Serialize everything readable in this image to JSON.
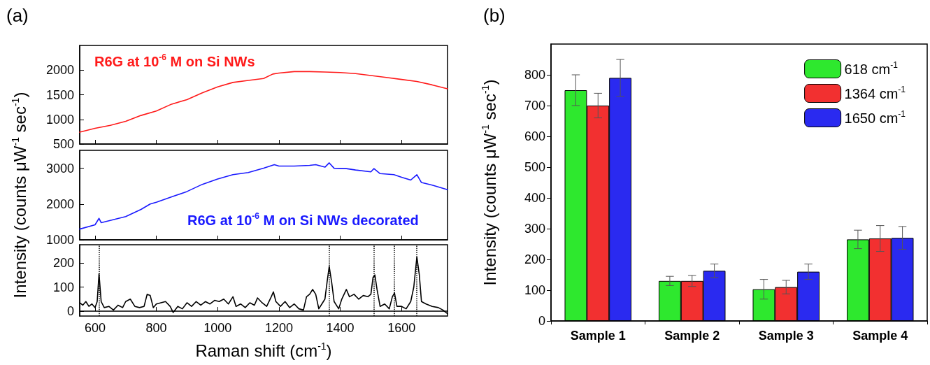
{
  "chart_data": [
    {
      "type": "line",
      "title": "(a)",
      "xlim": [
        550,
        1750
      ],
      "xticks": [
        600,
        800,
        1000,
        1200,
        1400,
        1600
      ],
      "ylim": [
        500,
        2500
      ],
      "yticks": [
        500,
        1000,
        1500,
        2000
      ],
      "tick_labels": "y",
      "series": [
        {
          "name": "R6G at 10$^{-6}$ M on Si NWs",
          "color": "#ff1a1a",
          "x": [
            550,
            600,
            650,
            700,
            750,
            800,
            850,
            900,
            950,
            1000,
            1050,
            1100,
            1150,
            1180,
            1200,
            1250,
            1300,
            1350,
            1400,
            1450,
            1500,
            1550,
            1600,
            1650,
            1700,
            1750
          ],
          "values": [
            740,
            820,
            880,
            960,
            1080,
            1170,
            1310,
            1400,
            1540,
            1660,
            1750,
            1790,
            1830,
            1920,
            1940,
            1970,
            1970,
            1960,
            1950,
            1930,
            1890,
            1850,
            1810,
            1770,
            1700,
            1620
          ]
        }
      ]
    },
    {
      "type": "line",
      "ylabel": "Intensity (counts μW$^{-1}$ sec$^{-1}$)",
      "xlim": [
        550,
        1750
      ],
      "xticks": [
        600,
        800,
        1000,
        1200,
        1400,
        1600
      ],
      "ylim": [
        1000,
        3500
      ],
      "yticks": [
        1000,
        2000,
        3000
      ],
      "tick_labels": "y",
      "series": [
        {
          "name": "R6G at 10$^{-6}$ M on Si NWs decorated",
          "color": "#1a1aff",
          "x": [
            550,
            600,
            613,
            620,
            700,
            750,
            780,
            800,
            850,
            900,
            950,
            1000,
            1050,
            1100,
            1150,
            1185,
            1200,
            1250,
            1300,
            1320,
            1350,
            1364,
            1380,
            1420,
            1450,
            1500,
            1510,
            1530,
            1575,
            1600,
            1630,
            1650,
            1665,
            1700,
            1750
          ],
          "values": [
            1300,
            1420,
            1600,
            1480,
            1650,
            1850,
            2000,
            2050,
            2200,
            2350,
            2550,
            2700,
            2820,
            2880,
            3000,
            3100,
            3060,
            3060,
            3080,
            3100,
            3030,
            3150,
            3000,
            2990,
            2950,
            2900,
            2990,
            2850,
            2820,
            2750,
            2670,
            2820,
            2600,
            2530,
            2400
          ]
        }
      ]
    },
    {
      "type": "line",
      "xlabel": "Raman shift (cm$^{-1}$)",
      "xlim": [
        550,
        1750
      ],
      "xticks": [
        600,
        800,
        1000,
        1200,
        1400,
        1600
      ],
      "ylim": [
        -20,
        275
      ],
      "yticks": [
        0,
        100,
        200
      ],
      "ref_lines": [
        {
          "axis": "x",
          "value": 613,
          "color": "#000000",
          "line_style": "dotted"
        },
        {
          "axis": "x",
          "value": 1364,
          "color": "#000000",
          "line_style": "dotted"
        },
        {
          "axis": "x",
          "value": 1510,
          "color": "#000000",
          "line_style": "dotted"
        },
        {
          "axis": "x",
          "value": 1575,
          "color": "#000000",
          "line_style": "dotted"
        },
        {
          "axis": "x",
          "value": 1650,
          "color": "#000000",
          "line_style": "dotted"
        }
      ],
      "series": [
        {
          "color": "#000000",
          "x": [
            550,
            560,
            570,
            580,
            590,
            600,
            607,
            613,
            620,
            630,
            645,
            660,
            675,
            690,
            700,
            715,
            730,
            745,
            760,
            770,
            780,
            790,
            800,
            815,
            830,
            845,
            855,
            870,
            885,
            900,
            915,
            930,
            945,
            960,
            975,
            990,
            1005,
            1020,
            1035,
            1050,
            1060,
            1075,
            1090,
            1105,
            1120,
            1130,
            1145,
            1160,
            1175,
            1182,
            1190,
            1205,
            1220,
            1235,
            1250,
            1265,
            1280,
            1290,
            1300,
            1310,
            1320,
            1330,
            1340,
            1350,
            1357,
            1364,
            1372,
            1380,
            1395,
            1405,
            1420,
            1430,
            1445,
            1460,
            1475,
            1490,
            1500,
            1507,
            1513,
            1520,
            1530,
            1545,
            1560,
            1570,
            1577,
            1585,
            1600,
            1615,
            1630,
            1640,
            1650,
            1658,
            1665,
            1680,
            1700,
            1720,
            1735,
            1750
          ],
          "values": [
            35,
            25,
            40,
            20,
            30,
            15,
            40,
            155,
            40,
            15,
            20,
            5,
            25,
            15,
            40,
            50,
            20,
            15,
            20,
            70,
            65,
            15,
            30,
            35,
            40,
            20,
            -5,
            20,
            10,
            35,
            20,
            40,
            25,
            40,
            30,
            45,
            40,
            50,
            30,
            60,
            20,
            30,
            15,
            35,
            25,
            55,
            35,
            20,
            60,
            80,
            40,
            20,
            40,
            15,
            30,
            10,
            5,
            60,
            70,
            90,
            70,
            10,
            30,
            50,
            120,
            185,
            120,
            40,
            10,
            50,
            90,
            60,
            70,
            50,
            65,
            60,
            70,
            140,
            150,
            90,
            20,
            30,
            10,
            60,
            75,
            20,
            20,
            10,
            40,
            100,
            225,
            150,
            40,
            30,
            20,
            15,
            5,
            -10
          ]
        }
      ]
    },
    {
      "type": "bar",
      "title": "(b)",
      "ylabel": "Intensity (counts μW$^{-1}$ sec$^{-1}$)",
      "categories": [
        "Sample 1",
        "Sample 2",
        "Sample 3",
        "Sample 4"
      ],
      "ylim": [
        0,
        900
      ],
      "yticks": [
        0,
        100,
        200,
        300,
        400,
        500,
        600,
        700,
        800
      ],
      "legend": "top right",
      "series": [
        {
          "name": "618 cm$^{-1}$",
          "color": "#2ee82e",
          "values": [
            750,
            130,
            103,
            265
          ],
          "errors": [
            50,
            15,
            32,
            30
          ]
        },
        {
          "name": "1364 cm$^{-1}$",
          "color": "#f23030",
          "values": [
            700,
            130,
            110,
            268
          ],
          "errors": [
            40,
            18,
            22,
            42
          ]
        },
        {
          "name": "1650 cm$^{-1}$",
          "color": "#2a2af0",
          "values": [
            790,
            163,
            160,
            270
          ],
          "errors": [
            60,
            22,
            25,
            37
          ]
        }
      ]
    }
  ]
}
